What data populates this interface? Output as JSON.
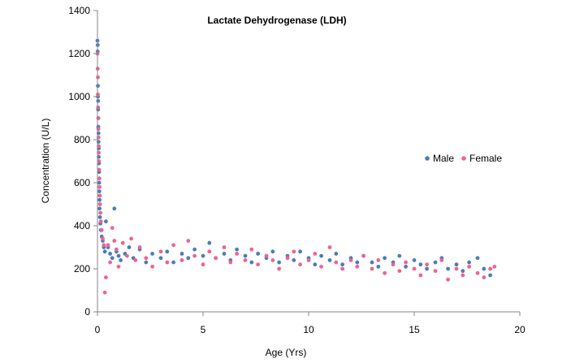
{
  "chart_data": {
    "type": "scatter",
    "title": "Lactate Dehydrogenase (LDH)",
    "xlabel": "Age (Yrs)",
    "ylabel": "Concentration (U/L)",
    "xlim": [
      0,
      20
    ],
    "ylim": [
      0,
      1400
    ],
    "x_ticks": [
      0,
      5,
      10,
      15,
      20
    ],
    "y_ticks": [
      0,
      200,
      400,
      600,
      800,
      1000,
      1200,
      1400
    ],
    "grid": false,
    "legend_position": "right",
    "colors": {
      "Male": "#4a7db8",
      "Female": "#f06292"
    },
    "series": [
      {
        "name": "Male",
        "points": [
          [
            0.0,
            1260
          ],
          [
            0.01,
            1240
          ],
          [
            0.01,
            1210
          ],
          [
            0.02,
            1050
          ],
          [
            0.02,
            1000
          ],
          [
            0.03,
            980
          ],
          [
            0.03,
            940
          ],
          [
            0.04,
            900
          ],
          [
            0.04,
            860
          ],
          [
            0.05,
            830
          ],
          [
            0.05,
            790
          ],
          [
            0.06,
            760
          ],
          [
            0.06,
            720
          ],
          [
            0.07,
            690
          ],
          [
            0.08,
            650
          ],
          [
            0.08,
            600
          ],
          [
            0.09,
            560
          ],
          [
            0.1,
            520
          ],
          [
            0.1,
            480
          ],
          [
            0.12,
            440
          ],
          [
            0.14,
            410
          ],
          [
            0.16,
            380
          ],
          [
            0.2,
            350
          ],
          [
            0.25,
            330
          ],
          [
            0.3,
            300
          ],
          [
            0.35,
            280
          ],
          [
            0.4,
            420
          ],
          [
            0.5,
            300
          ],
          [
            0.6,
            270
          ],
          [
            0.7,
            250
          ],
          [
            0.8,
            480
          ],
          [
            0.9,
            280
          ],
          [
            1.0,
            260
          ],
          [
            1.1,
            240
          ],
          [
            1.3,
            270
          ],
          [
            1.5,
            300
          ],
          [
            1.7,
            250
          ],
          [
            2.0,
            290
          ],
          [
            2.3,
            230
          ],
          [
            2.6,
            270
          ],
          [
            3.0,
            250
          ],
          [
            3.3,
            280
          ],
          [
            3.6,
            230
          ],
          [
            4.0,
            270
          ],
          [
            4.3,
            250
          ],
          [
            4.6,
            290
          ],
          [
            5.0,
            260
          ],
          [
            5.3,
            320
          ],
          [
            5.6,
            250
          ],
          [
            6.0,
            270
          ],
          [
            6.3,
            240
          ],
          [
            6.6,
            290
          ],
          [
            7.0,
            260
          ],
          [
            7.3,
            230
          ],
          [
            7.6,
            270
          ],
          [
            8.0,
            250
          ],
          [
            8.3,
            280
          ],
          [
            8.6,
            230
          ],
          [
            9.0,
            260
          ],
          [
            9.3,
            240
          ],
          [
            9.6,
            280
          ],
          [
            10.0,
            250
          ],
          [
            10.3,
            220
          ],
          [
            10.6,
            260
          ],
          [
            11.0,
            240
          ],
          [
            11.3,
            270
          ],
          [
            11.6,
            220
          ],
          [
            12.0,
            250
          ],
          [
            12.3,
            230
          ],
          [
            12.6,
            260
          ],
          [
            13.0,
            230
          ],
          [
            13.3,
            210
          ],
          [
            13.6,
            250
          ],
          [
            14.0,
            230
          ],
          [
            14.3,
            260
          ],
          [
            14.6,
            210
          ],
          [
            15.0,
            240
          ],
          [
            15.3,
            220
          ],
          [
            15.6,
            200
          ],
          [
            16.0,
            230
          ],
          [
            16.3,
            250
          ],
          [
            16.6,
            200
          ],
          [
            17.0,
            220
          ],
          [
            17.3,
            190
          ],
          [
            17.6,
            230
          ],
          [
            18.0,
            250
          ],
          [
            18.3,
            200
          ],
          [
            18.6,
            170
          ]
        ]
      },
      {
        "name": "Female",
        "points": [
          [
            0.0,
            1200
          ],
          [
            0.01,
            1130
          ],
          [
            0.02,
            1090
          ],
          [
            0.02,
            1010
          ],
          [
            0.03,
            950
          ],
          [
            0.04,
            900
          ],
          [
            0.04,
            850
          ],
          [
            0.05,
            810
          ],
          [
            0.06,
            770
          ],
          [
            0.06,
            740
          ],
          [
            0.07,
            700
          ],
          [
            0.08,
            660
          ],
          [
            0.09,
            620
          ],
          [
            0.1,
            580
          ],
          [
            0.11,
            540
          ],
          [
            0.12,
            500
          ],
          [
            0.14,
            460
          ],
          [
            0.16,
            420
          ],
          [
            0.2,
            380
          ],
          [
            0.25,
            340
          ],
          [
            0.3,
            310
          ],
          [
            0.35,
            90
          ],
          [
            0.4,
            160
          ],
          [
            0.5,
            310
          ],
          [
            0.6,
            230
          ],
          [
            0.7,
            390
          ],
          [
            0.8,
            330
          ],
          [
            0.9,
            290
          ],
          [
            1.0,
            210
          ],
          [
            1.2,
            320
          ],
          [
            1.4,
            260
          ],
          [
            1.6,
            340
          ],
          [
            1.8,
            240
          ],
          [
            2.0,
            300
          ],
          [
            2.3,
            250
          ],
          [
            2.6,
            210
          ],
          [
            3.0,
            280
          ],
          [
            3.3,
            230
          ],
          [
            3.6,
            310
          ],
          [
            4.0,
            240
          ],
          [
            4.3,
            330
          ],
          [
            4.6,
            260
          ],
          [
            5.0,
            220
          ],
          [
            5.3,
            280
          ],
          [
            5.6,
            250
          ],
          [
            6.0,
            300
          ],
          [
            6.3,
            230
          ],
          [
            6.6,
            270
          ],
          [
            7.0,
            240
          ],
          [
            7.3,
            290
          ],
          [
            7.6,
            220
          ],
          [
            8.0,
            260
          ],
          [
            8.3,
            240
          ],
          [
            8.6,
            200
          ],
          [
            9.0,
            250
          ],
          [
            9.3,
            280
          ],
          [
            9.6,
            220
          ],
          [
            10.0,
            240
          ],
          [
            10.3,
            270
          ],
          [
            10.6,
            210
          ],
          [
            11.0,
            300
          ],
          [
            11.3,
            230
          ],
          [
            11.6,
            200
          ],
          [
            12.0,
            240
          ],
          [
            12.3,
            210
          ],
          [
            12.6,
            260
          ],
          [
            13.0,
            200
          ],
          [
            13.3,
            240
          ],
          [
            13.6,
            180
          ],
          [
            14.0,
            220
          ],
          [
            14.3,
            190
          ],
          [
            14.6,
            230
          ],
          [
            15.0,
            200
          ],
          [
            15.3,
            170
          ],
          [
            15.6,
            220
          ],
          [
            16.0,
            190
          ],
          [
            16.3,
            240
          ],
          [
            16.6,
            150
          ],
          [
            17.0,
            200
          ],
          [
            17.3,
            170
          ],
          [
            17.6,
            210
          ],
          [
            18.0,
            180
          ],
          [
            18.3,
            160
          ],
          [
            18.6,
            200
          ],
          [
            18.8,
            210
          ]
        ]
      }
    ]
  }
}
